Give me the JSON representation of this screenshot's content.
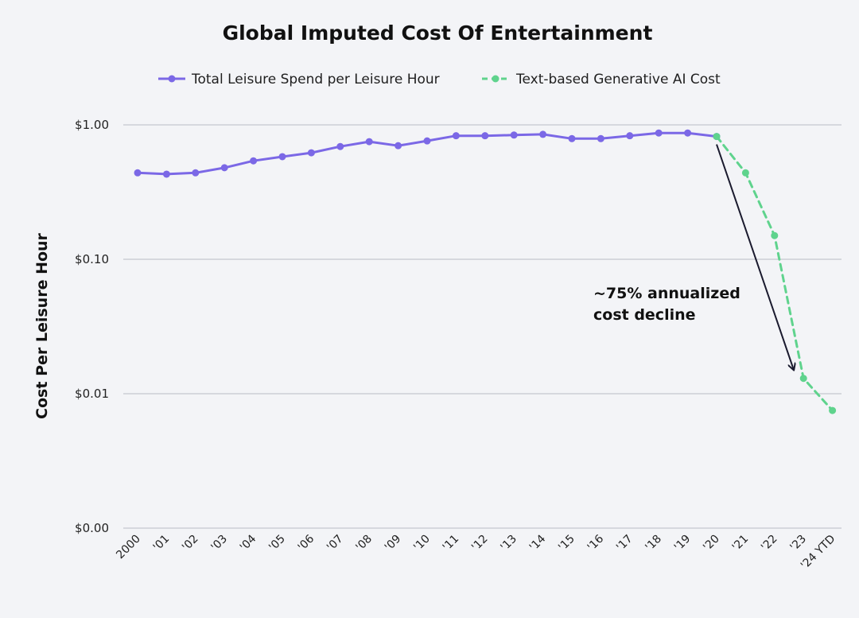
{
  "chart_data": {
    "type": "line",
    "title": "Global Imputed Cost Of Entertainment",
    "xlabel": "",
    "ylabel": "Cost Per Leisure Hour",
    "yscale": "log",
    "ylim": [
      0.001,
      1.0
    ],
    "yticks": [
      {
        "value": 1.0,
        "label": "$1.00"
      },
      {
        "value": 0.1,
        "label": "$0.10"
      },
      {
        "value": 0.01,
        "label": "$0.01"
      },
      {
        "value": 0.001,
        "label": "$0.00"
      }
    ],
    "grid": true,
    "legend_position": "top-center",
    "categories": [
      "2000",
      "'01",
      "'02",
      "'03",
      "'04",
      "'05",
      "'06",
      "'07",
      "'08",
      "'09",
      "'10",
      "'11",
      "'12",
      "'13",
      "'14",
      "'15",
      "'16",
      "'17",
      "'18",
      "'19",
      "'20",
      "'21",
      "'22",
      "'23",
      "'24 YTD"
    ],
    "series": [
      {
        "name": "Total Leisure Spend per Leisure Hour",
        "color": "#7b68e6",
        "style": "solid",
        "values": [
          0.44,
          0.43,
          0.44,
          0.48,
          0.54,
          0.58,
          0.62,
          0.69,
          0.75,
          0.7,
          0.76,
          0.83,
          0.83,
          0.84,
          0.85,
          0.79,
          0.79,
          0.83,
          0.87,
          0.87,
          0.82,
          null,
          null,
          null,
          null
        ]
      },
      {
        "name": "Text-based Generative AI Cost",
        "color": "#5fd38d",
        "style": "dashed",
        "values": [
          null,
          null,
          null,
          null,
          null,
          null,
          null,
          null,
          null,
          null,
          null,
          null,
          null,
          null,
          null,
          null,
          null,
          null,
          null,
          null,
          0.82,
          0.44,
          0.15,
          0.013,
          0.0075
        ]
      }
    ],
    "annotations": [
      {
        "lines": [
          "~75% annualized",
          "cost decline"
        ],
        "arrow_from_value": 0.82,
        "arrow_to_value": 0.0125,
        "arrow_color": "#1a1a2e"
      }
    ]
  }
}
